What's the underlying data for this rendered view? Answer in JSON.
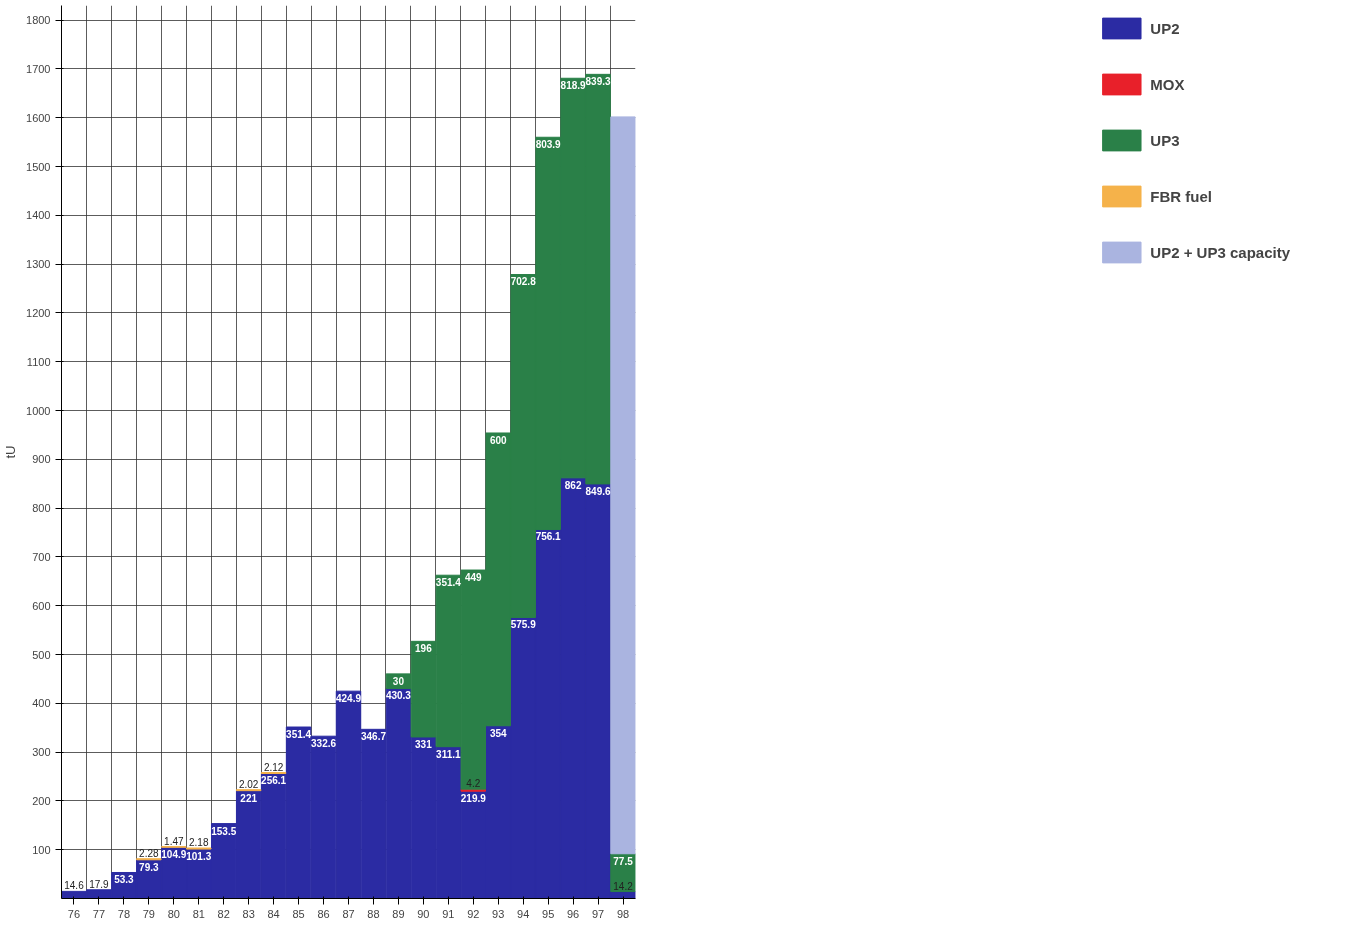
{
  "chart_data": {
    "type": "bar",
    "stacked": true,
    "ylabel": "tU",
    "categories": [
      "76",
      "77",
      "78",
      "79",
      "80",
      "81",
      "82",
      "83",
      "84",
      "85",
      "86",
      "87",
      "88",
      "89",
      "90",
      "91",
      "92",
      "93",
      "94",
      "95",
      "96",
      "97",
      "98"
    ],
    "series": [
      {
        "name": "UP2",
        "color": "#2b2ba3",
        "values": [
          14.6,
          17.9,
          53.3,
          79.3,
          104.9,
          101.3,
          153.5,
          221,
          256.1,
          351.4,
          332.6,
          424.9,
          346.7,
          430.3,
          331,
          311.1,
          219.9,
          354,
          575.9,
          756.1,
          862,
          849.6,
          14.2
        ],
        "value_labels": [
          "14.6",
          "17.9",
          "53.3",
          "79.3",
          "104.9",
          "101.3",
          "153.5",
          "221",
          "256.1",
          "351.4",
          "332.6",
          "424.9",
          "346.7",
          "430.3",
          "331",
          "311.1",
          "219.9",
          "354",
          "575.9",
          "756.1",
          "862",
          "849.6",
          "14.2"
        ]
      },
      {
        "name": "MOX",
        "color": "#e8202a",
        "values": [
          null,
          null,
          null,
          null,
          null,
          null,
          null,
          null,
          null,
          null,
          null,
          null,
          null,
          null,
          null,
          null,
          4.2,
          null,
          null,
          null,
          null,
          null,
          null
        ],
        "value_labels": [
          null,
          null,
          null,
          null,
          null,
          null,
          null,
          null,
          null,
          null,
          null,
          null,
          null,
          null,
          null,
          null,
          "4.2",
          null,
          null,
          null,
          null,
          null,
          null
        ]
      },
      {
        "name": "UP3",
        "color": "#2a8048",
        "values": [
          null,
          null,
          null,
          null,
          null,
          null,
          null,
          null,
          null,
          null,
          null,
          null,
          null,
          30,
          196,
          351.4,
          449,
          600,
          702.8,
          803.9,
          818.9,
          839.3,
          77.5
        ],
        "value_labels": [
          null,
          null,
          null,
          null,
          null,
          null,
          null,
          null,
          null,
          null,
          null,
          null,
          null,
          "30",
          "196",
          "351.4",
          "449",
          "600",
          "702.8",
          "803.9",
          "818.9",
          "839.3",
          "77.5"
        ]
      },
      {
        "name": "FBR fuel",
        "color": "#f5b24a",
        "values": [
          null,
          null,
          null,
          2.28,
          1.47,
          2.18,
          null,
          2.02,
          2.12,
          null,
          null,
          null,
          null,
          null,
          null,
          null,
          null,
          null,
          null,
          null,
          null,
          null,
          null
        ],
        "value_labels": [
          null,
          null,
          null,
          "2.28",
          "1.47",
          "2.18",
          null,
          "2.02",
          "2.12",
          null,
          null,
          null,
          null,
          null,
          null,
          null,
          null,
          null,
          null,
          null,
          null,
          null,
          null
        ]
      },
      {
        "name": "UP2 + UP3 capacity",
        "color": "#aab4e0",
        "values": [
          null,
          null,
          null,
          null,
          null,
          null,
          null,
          null,
          null,
          null,
          null,
          null,
          null,
          null,
          null,
          null,
          null,
          null,
          null,
          null,
          null,
          null,
          1510
        ]
      }
    ],
    "ylim": [
      0,
      1830
    ],
    "yticks": [
      100,
      200,
      300,
      400,
      500,
      600,
      700,
      800,
      900,
      1000,
      1100,
      1200,
      1300,
      1400,
      1500,
      1600,
      1700,
      1800
    ],
    "grid": true,
    "legend": "right"
  }
}
